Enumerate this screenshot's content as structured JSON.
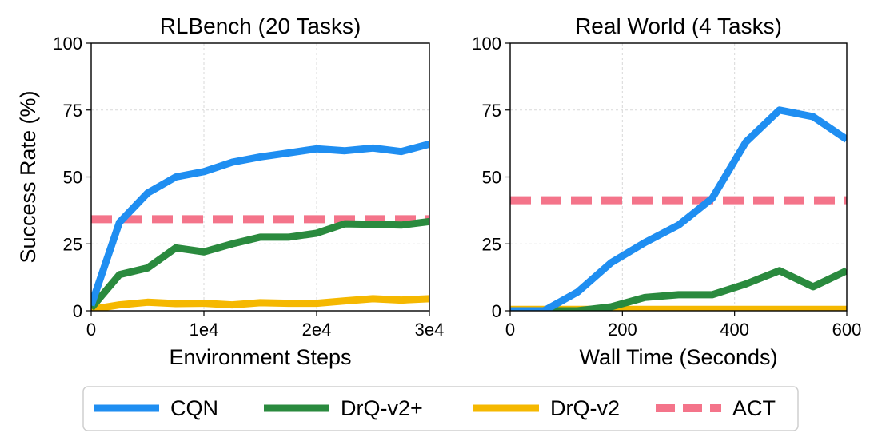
{
  "chart_data": [
    {
      "type": "line",
      "title": "RLBench (20 Tasks)",
      "xlabel": "Environment Steps",
      "ylabel": "Success Rate (%)",
      "xlim": [
        0,
        30000
      ],
      "ylim": [
        0,
        100
      ],
      "xticks": [
        0,
        10000,
        20000,
        30000
      ],
      "xtick_labels": [
        "0",
        "1e4",
        "2e4",
        "3e4"
      ],
      "yticks": [
        0,
        25,
        50,
        75,
        100
      ],
      "ytick_labels": [
        "0",
        "25",
        "50",
        "75",
        "100"
      ],
      "grid": true,
      "series": [
        {
          "name": "CQN",
          "color": "#1f8ef1",
          "style": "solid",
          "x": [
            0,
            2500,
            5000,
            7500,
            10000,
            12500,
            15000,
            17500,
            20000,
            22500,
            25000,
            27500,
            30000
          ],
          "y": [
            2,
            33,
            44,
            50,
            52,
            55.5,
            57.5,
            59,
            60.5,
            59.8,
            60.8,
            59.5,
            62.3
          ]
        },
        {
          "name": "DrQ-v2+",
          "color": "#2a8a3e",
          "style": "solid",
          "x": [
            0,
            2500,
            5000,
            7500,
            10000,
            12500,
            15000,
            17500,
            20000,
            22500,
            25000,
            27500,
            30000
          ],
          "y": [
            1,
            13.5,
            16,
            23.5,
            22,
            25,
            27.5,
            27.5,
            29,
            32.5,
            32.3,
            32,
            33.3
          ]
        },
        {
          "name": "DrQ-v2",
          "color": "#f5b800",
          "style": "solid",
          "x": [
            0,
            2500,
            5000,
            7500,
            10000,
            12500,
            15000,
            17500,
            20000,
            22500,
            25000,
            27500,
            30000
          ],
          "y": [
            0.5,
            2.2,
            3.2,
            2.7,
            2.8,
            2.2,
            3,
            2.8,
            2.8,
            3.7,
            4.5,
            4,
            4.5
          ]
        },
        {
          "name": "ACT",
          "color": "#f4748a",
          "style": "dashed",
          "x": [
            0,
            30000
          ],
          "y": [
            34.2,
            34.2
          ]
        }
      ]
    },
    {
      "type": "line",
      "title": "Real World (4 Tasks)",
      "xlabel": "Wall Time (Seconds)",
      "ylabel": "",
      "xlim": [
        0,
        600
      ],
      "ylim": [
        0,
        100
      ],
      "xticks": [
        0,
        200,
        400,
        600
      ],
      "xtick_labels": [
        "0",
        "200",
        "400",
        "600"
      ],
      "yticks": [
        0,
        25,
        50,
        75,
        100
      ],
      "ytick_labels": [
        "0",
        "25",
        "50",
        "75",
        "100"
      ],
      "grid": true,
      "series": [
        {
          "name": "CQN",
          "color": "#1f8ef1",
          "style": "solid",
          "x": [
            0,
            60,
            120,
            180,
            240,
            300,
            360,
            420,
            480,
            540,
            600
          ],
          "y": [
            0,
            0,
            7,
            18,
            25.5,
            32,
            42,
            63,
            75,
            72.5,
            64
          ]
        },
        {
          "name": "DrQ-v2+",
          "color": "#2a8a3e",
          "style": "solid",
          "x": [
            0,
            60,
            120,
            180,
            240,
            300,
            360,
            420,
            480,
            540,
            600
          ],
          "y": [
            0,
            0,
            0,
            1.5,
            5,
            6,
            6,
            10,
            15,
            9,
            15
          ]
        },
        {
          "name": "DrQ-v2",
          "color": "#f5b800",
          "style": "solid",
          "x": [
            0,
            600
          ],
          "y": [
            0.5,
            0.5
          ]
        },
        {
          "name": "ACT",
          "color": "#f4748a",
          "style": "dashed",
          "x": [
            0,
            600
          ],
          "y": [
            41.3,
            41.3
          ]
        }
      ]
    }
  ],
  "legend": {
    "placement": "bottom-center",
    "entries": [
      {
        "label": "CQN",
        "color": "#1f8ef1",
        "style": "solid"
      },
      {
        "label": "DrQ-v2+",
        "color": "#2a8a3e",
        "style": "solid"
      },
      {
        "label": "DrQ-v2",
        "color": "#f5b800",
        "style": "solid"
      },
      {
        "label": "ACT",
        "color": "#f4748a",
        "style": "dashed"
      }
    ]
  }
}
